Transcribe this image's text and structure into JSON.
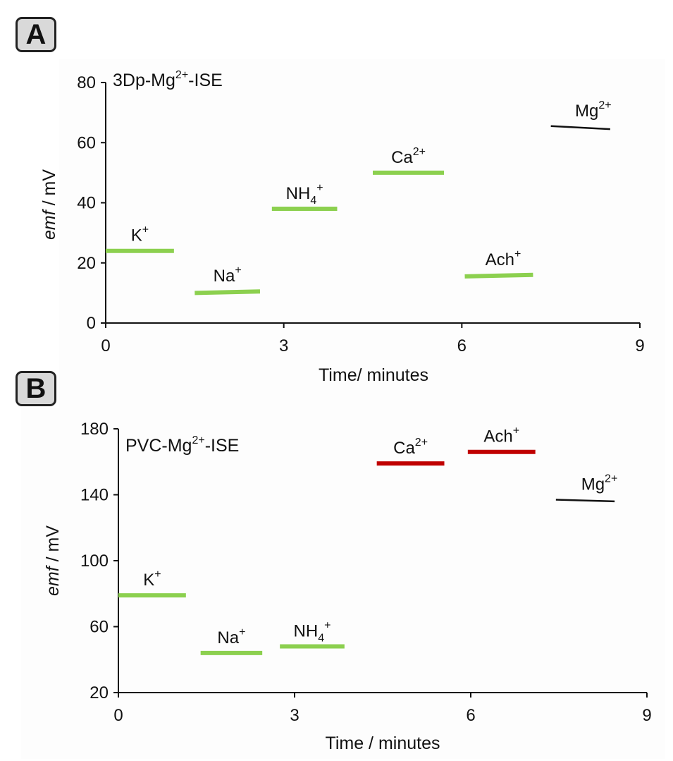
{
  "panels": {
    "a": {
      "badge": "A"
    },
    "b": {
      "badge": "B"
    }
  },
  "colors": {
    "green": "#8cd04f",
    "red": "#c00000",
    "black": "#111111"
  },
  "chart_data": [
    {
      "type": "line",
      "panel": "A",
      "title": "3Dp-Mg2+-ISE",
      "title_parts": {
        "base": "3Dp-Mg",
        "sup": "2+",
        "suffix": "-ISE"
      },
      "xlabel": "Time/ minutes",
      "ylabel_italic": "emf",
      "ylabel_rest": " / mV",
      "xlim": [
        0,
        9
      ],
      "ylim": [
        0,
        80
      ],
      "xticks": [
        0,
        3,
        6,
        9
      ],
      "yticks": [
        0,
        20,
        40,
        60,
        80
      ],
      "series": [
        {
          "name": "K+",
          "base": "K",
          "sup": "+",
          "sub": "",
          "color": "green",
          "x": [
            0,
            1.15
          ],
          "y": [
            24,
            24
          ]
        },
        {
          "name": "Na+",
          "base": "Na",
          "sup": "+",
          "sub": "",
          "color": "green",
          "x": [
            1.5,
            2.6
          ],
          "y": [
            10,
            10.5
          ]
        },
        {
          "name": "NH4+",
          "base": "NH",
          "sub": "4",
          "sup": "+",
          "color": "green",
          "x": [
            2.8,
            3.9
          ],
          "y": [
            38,
            38
          ]
        },
        {
          "name": "Ca2+",
          "base": "Ca",
          "sup": "2+",
          "sub": "",
          "color": "green",
          "x": [
            4.5,
            5.7
          ],
          "y": [
            50,
            50
          ]
        },
        {
          "name": "Ach+",
          "base": "Ach",
          "sup": "+",
          "sub": "",
          "color": "green",
          "x": [
            6.05,
            7.2
          ],
          "y": [
            15.5,
            16
          ]
        },
        {
          "name": "Mg2+",
          "base": "Mg",
          "sup": "2+",
          "sub": "",
          "color": "black",
          "x": [
            7.5,
            8.5
          ],
          "y": [
            65.5,
            64.5
          ]
        }
      ]
    },
    {
      "type": "line",
      "panel": "B",
      "title": "PVC-Mg2+-ISE",
      "title_parts": {
        "base": "PVC-Mg",
        "sup": "2+",
        "suffix": "-ISE"
      },
      "xlabel": "Time / minutes",
      "ylabel_italic": "emf",
      "ylabel_rest": " / mV",
      "xlim": [
        0,
        9
      ],
      "ylim": [
        20,
        180
      ],
      "xticks": [
        0,
        3,
        6,
        9
      ],
      "yticks": [
        20,
        60,
        100,
        140,
        180
      ],
      "series": [
        {
          "name": "K+",
          "base": "K",
          "sup": "+",
          "sub": "",
          "color": "green",
          "x": [
            0,
            1.15
          ],
          "y": [
            79,
            79
          ]
        },
        {
          "name": "Na+",
          "base": "Na",
          "sup": "+",
          "sub": "",
          "color": "green",
          "x": [
            1.4,
            2.45
          ],
          "y": [
            44,
            44
          ]
        },
        {
          "name": "NH4+",
          "base": "NH",
          "sub": "4",
          "sup": "+",
          "color": "green",
          "x": [
            2.75,
            3.85
          ],
          "y": [
            48,
            48
          ]
        },
        {
          "name": "Ca2+",
          "base": "Ca",
          "sup": "2+",
          "sub": "",
          "color": "red",
          "x": [
            4.4,
            5.55
          ],
          "y": [
            159,
            159
          ]
        },
        {
          "name": "Ach+",
          "base": "Ach",
          "sup": "+",
          "sub": "",
          "color": "red",
          "x": [
            5.95,
            7.1
          ],
          "y": [
            166,
            166
          ]
        },
        {
          "name": "Mg2+",
          "base": "Mg",
          "sup": "2+",
          "sub": "",
          "color": "black",
          "x": [
            7.45,
            8.45
          ],
          "y": [
            137,
            136
          ]
        }
      ]
    }
  ]
}
